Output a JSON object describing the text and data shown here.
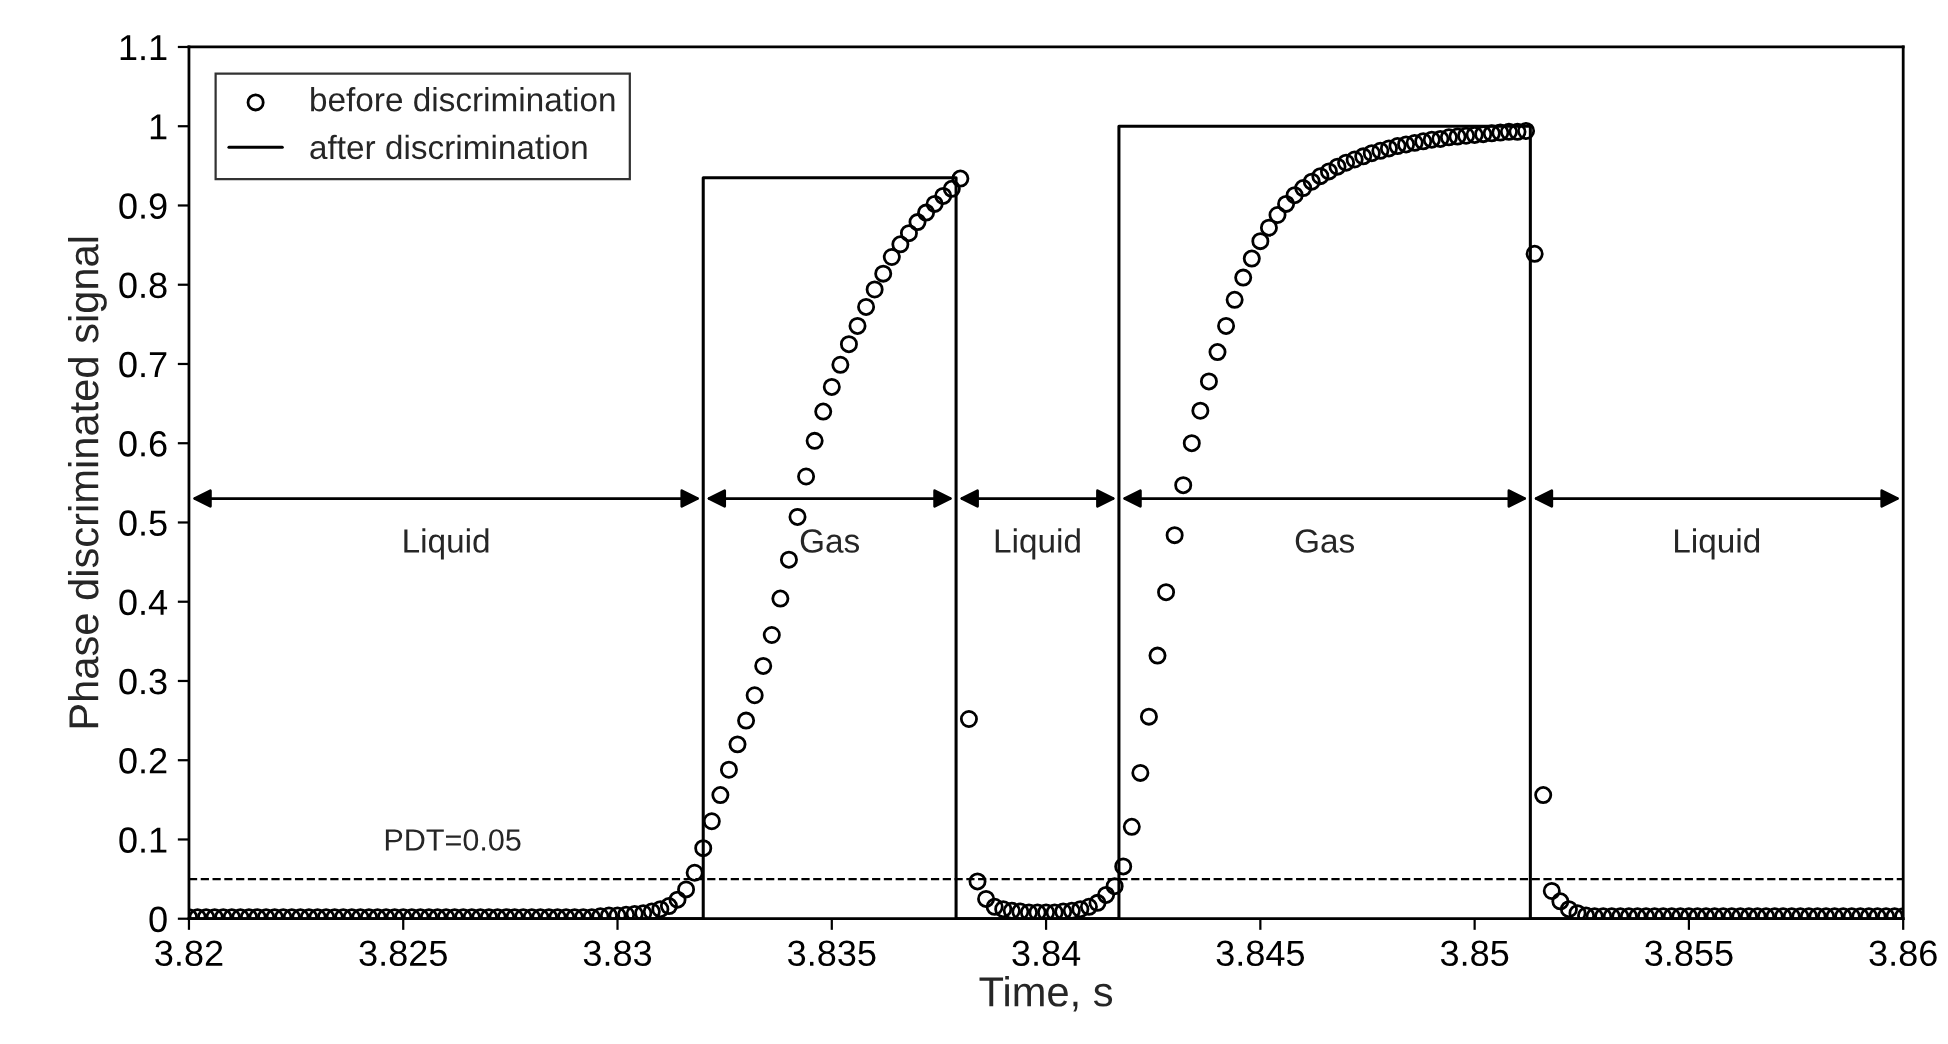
{
  "chart_data": {
    "type": "scatter",
    "xlabel": "Time, s",
    "ylabel": "Phase discriminated signal",
    "xlim": [
      3.82,
      3.86
    ],
    "ylim": [
      0,
      1.1
    ],
    "xticks": [
      3.82,
      3.825,
      3.83,
      3.835,
      3.84,
      3.845,
      3.85,
      3.855,
      3.86
    ],
    "yticks": [
      0,
      0.1,
      0.2,
      0.3,
      0.4,
      0.5,
      0.6,
      0.7,
      0.8,
      0.9,
      1,
      1.1
    ],
    "grid": false,
    "legend": "top left",
    "series": [
      {
        "name": "before discrimination",
        "marker": "circle",
        "color": "#000000",
        "x": [
          3.82,
          3.8202,
          3.8204,
          3.8206,
          3.8208,
          3.821,
          3.8212,
          3.8214,
          3.8216,
          3.8218,
          3.822,
          3.8222,
          3.8224,
          3.8226,
          3.8228,
          3.823,
          3.8232,
          3.8234,
          3.8236,
          3.8238,
          3.824,
          3.8242,
          3.8244,
          3.8246,
          3.8248,
          3.825,
          3.8252,
          3.8254,
          3.8256,
          3.8258,
          3.826,
          3.8262,
          3.8264,
          3.8266,
          3.8268,
          3.827,
          3.8272,
          3.8274,
          3.8276,
          3.8278,
          3.828,
          3.8282,
          3.8284,
          3.8286,
          3.8288,
          3.829,
          3.8292,
          3.8294,
          3.8296,
          3.8298,
          3.83,
          3.8302,
          3.8304,
          3.8306,
          3.8308,
          3.831,
          3.8312,
          3.8314,
          3.8316,
          3.8318,
          3.832,
          3.8322,
          3.8324,
          3.8326,
          3.8328,
          3.833,
          3.8332,
          3.8334,
          3.8336,
          3.8338,
          3.834,
          3.8342,
          3.8344,
          3.8346,
          3.8348,
          3.835,
          3.8352,
          3.8354,
          3.8356,
          3.8358,
          3.836,
          3.8362,
          3.8364,
          3.8366,
          3.8368,
          3.837,
          3.8372,
          3.8374,
          3.8376,
          3.8378,
          3.838,
          3.8382,
          3.8384,
          3.8386,
          3.8388,
          3.839,
          3.8392,
          3.8394,
          3.8396,
          3.8398,
          3.84,
          3.8402,
          3.8404,
          3.8406,
          3.8408,
          3.841,
          3.8412,
          3.8414,
          3.8416,
          3.8418,
          3.842,
          3.8422,
          3.8424,
          3.8426,
          3.8428,
          3.843,
          3.8432,
          3.8434,
          3.8436,
          3.8438,
          3.844,
          3.8442,
          3.8444,
          3.8446,
          3.8448,
          3.845,
          3.8452,
          3.8454,
          3.8456,
          3.8458,
          3.846,
          3.8462,
          3.8464,
          3.8466,
          3.8468,
          3.847,
          3.8472,
          3.8474,
          3.8476,
          3.8478,
          3.848,
          3.8482,
          3.8484,
          3.8486,
          3.8488,
          3.849,
          3.8492,
          3.8494,
          3.8496,
          3.8498,
          3.85,
          3.8502,
          3.8504,
          3.8506,
          3.8508,
          3.851,
          3.8512,
          3.8514,
          3.8516,
          3.8518,
          3.852,
          3.8522,
          3.8524,
          3.8526,
          3.8528,
          3.853,
          3.8532,
          3.8534,
          3.8536,
          3.8538,
          3.854,
          3.8542,
          3.8544,
          3.8546,
          3.8548,
          3.855,
          3.8552,
          3.8554,
          3.8556,
          3.8558,
          3.856,
          3.8562,
          3.8564,
          3.8566,
          3.8568,
          3.857,
          3.8572,
          3.8574,
          3.8576,
          3.8578,
          3.858,
          3.8582,
          3.8584,
          3.8586,
          3.8588,
          3.859,
          3.8592,
          3.8594,
          3.8596,
          3.8598,
          3.86
        ],
        "values": [
          0.002,
          0.002,
          0.002,
          0.002,
          0.002,
          0.002,
          0.002,
          0.002,
          0.002,
          0.002,
          0.002,
          0.002,
          0.002,
          0.002,
          0.002,
          0.002,
          0.002,
          0.002,
          0.002,
          0.002,
          0.002,
          0.002,
          0.002,
          0.002,
          0.002,
          0.002,
          0.002,
          0.002,
          0.002,
          0.002,
          0.002,
          0.002,
          0.002,
          0.002,
          0.002,
          0.002,
          0.002,
          0.002,
          0.002,
          0.002,
          0.002,
          0.002,
          0.002,
          0.002,
          0.002,
          0.002,
          0.002,
          0.002,
          0.003,
          0.004,
          0.004,
          0.005,
          0.006,
          0.007,
          0.009,
          0.012,
          0.016,
          0.024,
          0.037,
          0.058,
          0.089,
          0.123,
          0.156,
          0.188,
          0.22,
          0.25,
          0.282,
          0.319,
          0.358,
          0.404,
          0.453,
          0.507,
          0.558,
          0.603,
          0.64,
          0.671,
          0.699,
          0.725,
          0.748,
          0.772,
          0.794,
          0.814,
          0.835,
          0.851,
          0.865,
          0.879,
          0.891,
          0.902,
          0.912,
          0.921,
          0.934,
          0.252,
          0.047,
          0.025,
          0.015,
          0.012,
          0.01,
          0.009,
          0.008,
          0.008,
          0.008,
          0.008,
          0.009,
          0.01,
          0.012,
          0.015,
          0.02,
          0.03,
          0.041,
          0.066,
          0.116,
          0.184,
          0.255,
          0.332,
          0.412,
          0.484,
          0.547,
          0.6,
          0.641,
          0.678,
          0.715,
          0.748,
          0.781,
          0.809,
          0.833,
          0.855,
          0.872,
          0.888,
          0.902,
          0.913,
          0.922,
          0.93,
          0.937,
          0.943,
          0.949,
          0.954,
          0.958,
          0.962,
          0.966,
          0.969,
          0.972,
          0.975,
          0.977,
          0.979,
          0.981,
          0.983,
          0.984,
          0.986,
          0.987,
          0.988,
          0.989,
          0.99,
          0.991,
          0.992,
          0.993,
          0.993,
          0.994,
          0.839,
          0.156,
          0.035,
          0.022,
          0.012,
          0.007,
          0.004,
          0.003,
          0.003,
          0.003,
          0.003,
          0.003,
          0.003,
          0.003,
          0.003,
          0.003,
          0.003,
          0.003,
          0.003,
          0.003,
          0.003,
          0.003,
          0.003,
          0.003,
          0.003,
          0.003,
          0.003,
          0.003,
          0.003,
          0.003,
          0.003,
          0.003,
          0.003,
          0.003,
          0.003,
          0.003,
          0.003,
          0.003,
          0.003,
          0.003,
          0.003,
          0.003,
          0.003,
          0.003
        ]
      },
      {
        "name": "after discrimination",
        "type": "line",
        "marker": "none",
        "line_style": "solid",
        "color": "#000000",
        "x": [
          3.82,
          3.832,
          3.832,
          3.8379,
          3.8379,
          3.8417,
          3.8417,
          3.8513,
          3.8513,
          3.86
        ],
        "values": [
          0,
          0,
          0.935,
          0.935,
          0,
          0,
          1,
          1,
          0,
          0
        ]
      }
    ],
    "ref_lines": [
      {
        "axis": "y",
        "value": 0.05,
        "label": "PDT=0.05",
        "line_style": "dashed",
        "color": "#000000"
      }
    ],
    "annotations": [
      "Liquid",
      "Gas",
      "Liquid",
      "Gas",
      "Liquid"
    ]
  }
}
